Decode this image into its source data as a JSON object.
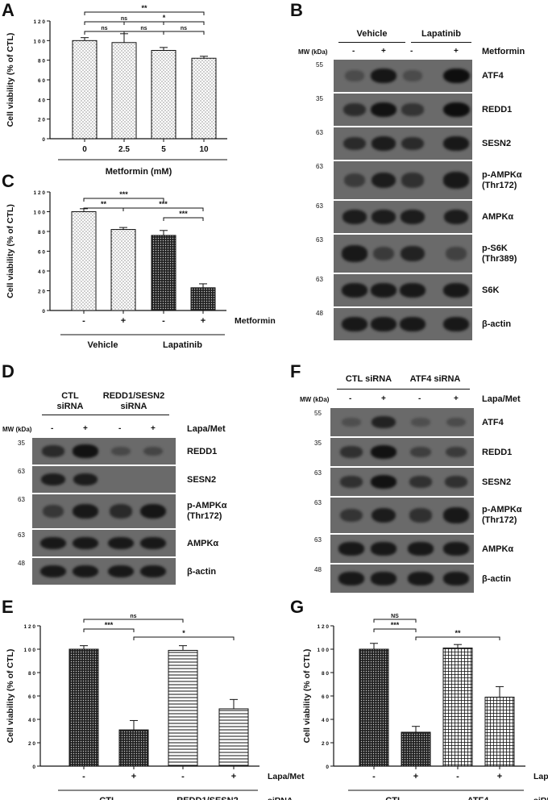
{
  "panels": {
    "A": "A",
    "B": "B",
    "C": "C",
    "D": "D",
    "E": "E",
    "F": "F",
    "G": "G"
  },
  "chart_data": [
    {
      "id": "A",
      "type": "bar",
      "categories": [
        "0",
        "2.5",
        "5",
        "10"
      ],
      "values": [
        100,
        98,
        90,
        82
      ],
      "errors": [
        3,
        9,
        3,
        2
      ],
      "ylabel": "Cell viability (% of CTL)",
      "xlabel": "Metformin (mM)",
      "ylim": [
        0,
        120
      ],
      "yticks": [
        "0",
        "2 0",
        "4 0",
        "6 0",
        "8 0",
        "1 0 0",
        "1 2 0"
      ],
      "significance": [
        {
          "from": 0,
          "to": 3,
          "label": "**"
        },
        {
          "from": 0,
          "to": 2,
          "label": "ns"
        },
        {
          "from": 1,
          "to": 3,
          "label": "*"
        },
        {
          "from": 0,
          "to": 1,
          "label": "ns"
        },
        {
          "from": 1,
          "to": 2,
          "label": "ns"
        },
        {
          "from": 2,
          "to": 3,
          "label": "ns"
        }
      ]
    },
    {
      "id": "C",
      "type": "bar",
      "categories": [
        "-",
        "+",
        "-",
        "+"
      ],
      "groups": [
        "Vehicle",
        "Lapatinib"
      ],
      "row_label": "Metformin",
      "values": [
        100,
        82,
        76,
        23
      ],
      "errors": [
        3,
        2,
        5,
        4
      ],
      "ylabel": "Cell viability (% of CTL)",
      "ylim": [
        0,
        120
      ],
      "yticks": [
        "0",
        "2 0",
        "4 0",
        "6 0",
        "8 0",
        "1 0 0",
        "1 2 0"
      ],
      "significance": [
        {
          "from": 0,
          "to": 2,
          "label": "***"
        },
        {
          "from": 0,
          "to": 1,
          "label": "**"
        },
        {
          "from": 1,
          "to": 3,
          "label": "***"
        },
        {
          "from": 2,
          "to": 3,
          "label": "***"
        }
      ]
    },
    {
      "id": "E",
      "type": "bar",
      "categories": [
        "-",
        "+",
        "-",
        "+"
      ],
      "groups": [
        "CTL",
        "REDD1/SESN2"
      ],
      "row_label": "Lapa/Met",
      "group_row_label": "siRNA",
      "values": [
        100,
        31,
        99,
        49
      ],
      "errors": [
        3,
        8,
        4,
        8
      ],
      "ylabel": "Cell viability (% of CTL)",
      "ylim": [
        0,
        120
      ],
      "yticks": [
        "0",
        "2 0",
        "4 0",
        "6 0",
        "8 0",
        "1 0 0",
        "1 2 0"
      ],
      "significance": [
        {
          "from": 0,
          "to": 2,
          "label": "ns"
        },
        {
          "from": 0,
          "to": 1,
          "label": "***"
        },
        {
          "from": 1,
          "to": 3,
          "label": "*"
        }
      ]
    },
    {
      "id": "G",
      "type": "bar",
      "categories": [
        "-",
        "+",
        "-",
        "+"
      ],
      "groups": [
        "CTL",
        "ATF4"
      ],
      "row_label": "Lapa/Met",
      "group_row_label": "siRNA",
      "values": [
        100,
        29,
        101,
        59
      ],
      "errors": [
        5,
        5,
        3,
        9
      ],
      "ylabel": "Cell viability (% of CTL)",
      "ylim": [
        0,
        120
      ],
      "yticks": [
        "0",
        "2 0",
        "4 0",
        "6 0",
        "8 0",
        "1 0 0",
        "1 2 0"
      ],
      "significance": [
        {
          "from": 0,
          "to": 1,
          "label": "NS"
        },
        {
          "from": 0,
          "to": 1,
          "label": "***"
        },
        {
          "from": 1,
          "to": 3,
          "label": "**"
        }
      ]
    }
  ],
  "blotB": {
    "groups": [
      "Vehicle",
      "Lapatinib"
    ],
    "mw_header": "MW (kDa)",
    "lane_signs": [
      "-",
      "+",
      "-",
      "+"
    ],
    "treatment": "Metformin",
    "rows": [
      {
        "label": "ATF4",
        "mw": "55"
      },
      {
        "label": "REDD1",
        "mw": "35"
      },
      {
        "label": "SESN2",
        "mw": "63"
      },
      {
        "label": "p-AMPKα\n(Thr172)",
        "mw": "63"
      },
      {
        "label": "AMPKα",
        "mw": "63"
      },
      {
        "label": "p-S6K\n(Thr389)",
        "mw": "63"
      },
      {
        "label": "S6K",
        "mw": "63"
      },
      {
        "label": "β-actin",
        "mw": "48"
      }
    ]
  },
  "blotD": {
    "groups": [
      "CTL\nsiRNA",
      "REDD1/SESN2\nsiRNA"
    ],
    "mw_header": "MW (kDa)",
    "lane_signs": [
      "-",
      "+",
      "-",
      "+"
    ],
    "treatment": "Lapa/Met",
    "rows": [
      {
        "label": "REDD1",
        "mw": "35"
      },
      {
        "label": "SESN2",
        "mw": "63"
      },
      {
        "label": "p-AMPKα\n(Thr172)",
        "mw": "63"
      },
      {
        "label": "AMPKα",
        "mw": "63"
      },
      {
        "label": "β-actin",
        "mw": "48"
      }
    ]
  },
  "blotF": {
    "groups": [
      "CTL siRNA",
      "ATF4 siRNA"
    ],
    "mw_header": "MW (kDa)",
    "lane_signs": [
      "-",
      "+",
      "-",
      "+"
    ],
    "treatment": "Lapa/Met",
    "rows": [
      {
        "label": "ATF4",
        "mw": "55"
      },
      {
        "label": "REDD1",
        "mw": "35"
      },
      {
        "label": "SESN2",
        "mw": "63"
      },
      {
        "label": "p-AMPKα\n(Thr172)",
        "mw": "63"
      },
      {
        "label": "AMPKα",
        "mw": "63"
      },
      {
        "label": "β-actin",
        "mw": "48"
      }
    ]
  }
}
